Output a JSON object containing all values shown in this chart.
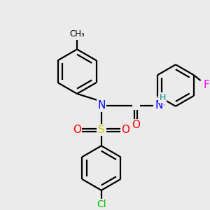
{
  "background_color": "#ebebeb",
  "colors": {
    "N": "#0000FF",
    "S": "#cccc00",
    "O": "#FF0000",
    "F": "#FF00FF",
    "Cl": "#00BB00",
    "C": "#000000",
    "H": "#008888"
  },
  "fig_width": 3.0,
  "fig_height": 3.0,
  "dpi": 100
}
